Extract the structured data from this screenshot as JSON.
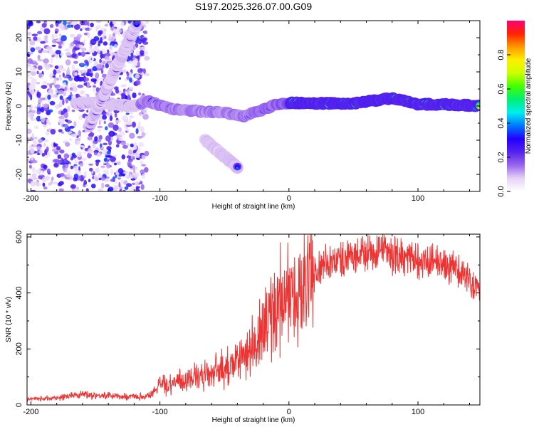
{
  "title": "S197.2025.326.07.00.G09",
  "chart_data": [
    {
      "type": "heatmap",
      "name": "spectrogram",
      "xlabel": "Height of straight line (km)",
      "ylabel": "Frequency (Hz)",
      "xlim": [
        -203,
        148
      ],
      "ylim": [
        -25,
        25
      ],
      "xticks": [
        -200,
        -100,
        0,
        100
      ],
      "yticks": [
        -20,
        -10,
        0,
        10,
        20
      ],
      "colorbar": {
        "label": "Normalized spectral amplitude",
        "range": [
          0,
          1
        ],
        "ticks": [
          0.0,
          0.2,
          0.4,
          0.6,
          0.8
        ],
        "colors": [
          "#ffffff",
          "#e6d2f5",
          "#9966ee",
          "#5522ee",
          "#2200ff",
          "#0077ff",
          "#00eeee",
          "#00ee77",
          "#44ff00",
          "#ccff00",
          "#ffee00",
          "#ff9900",
          "#ff2200",
          "#ff0077"
        ]
      },
      "ridges": [
        {
          "name": "main-trace",
          "points": [
            [
              -165,
              0.5
            ],
            [
              -150,
              1.0
            ],
            [
              -120,
              0.0
            ],
            [
              -110,
              1.5
            ],
            [
              -90,
              -1.0
            ],
            [
              -70,
              -1.5
            ],
            [
              -50,
              -2.0
            ],
            [
              -35,
              -3.0
            ],
            [
              -20,
              -1.0
            ],
            [
              -10,
              0.5
            ],
            [
              0,
              1.0
            ],
            [
              20,
              0.8
            ],
            [
              50,
              0.8
            ],
            [
              80,
              2.3
            ],
            [
              90,
              1.5
            ],
            [
              100,
              0.5
            ],
            [
              120,
              0.5
            ],
            [
              148,
              0.0
            ]
          ]
        },
        {
          "name": "rising-streak",
          "points": [
            [
              -155,
              -6
            ],
            [
              -118,
              24
            ]
          ]
        },
        {
          "name": "falling-streak",
          "points": [
            [
              -65,
              -10
            ],
            [
              -40,
              -18
            ]
          ]
        }
      ]
    },
    {
      "type": "line",
      "name": "snr",
      "xlabel": "Height of straight line (km)",
      "ylabel": "SNR (10 * v/v)",
      "xlim": [
        -203,
        148
      ],
      "ylim": [
        0,
        610
      ],
      "xticks": [
        -200,
        -100,
        0,
        100
      ],
      "yticks": [
        0,
        200,
        400,
        600
      ],
      "color": "#ee3333",
      "envelope": [
        [
          -203,
          20
        ],
        [
          -180,
          25
        ],
        [
          -160,
          40
        ],
        [
          -150,
          35
        ],
        [
          -130,
          30
        ],
        [
          -110,
          30
        ],
        [
          -100,
          70
        ],
        [
          -80,
          90
        ],
        [
          -60,
          110
        ],
        [
          -40,
          150
        ],
        [
          -25,
          220
        ],
        [
          -15,
          300
        ],
        [
          -10,
          360
        ],
        [
          0,
          380
        ],
        [
          10,
          400
        ],
        [
          20,
          470
        ],
        [
          30,
          510
        ],
        [
          50,
          530
        ],
        [
          70,
          540
        ],
        [
          90,
          530
        ],
        [
          110,
          515
        ],
        [
          130,
          480
        ],
        [
          148,
          420
        ]
      ]
    }
  ]
}
